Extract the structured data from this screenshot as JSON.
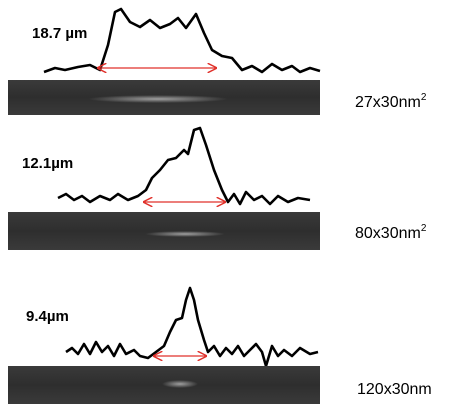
{
  "panels": [
    {
      "width": "18.7 µm",
      "size": {
        "text": "27x30nm",
        "sup": "2"
      }
    },
    {
      "width": "12.1µm",
      "size": {
        "text": "80x30nm",
        "sup": "2"
      }
    },
    {
      "width": "9.4µm",
      "size": {
        "text": "120x30nm"
      }
    }
  ]
}
